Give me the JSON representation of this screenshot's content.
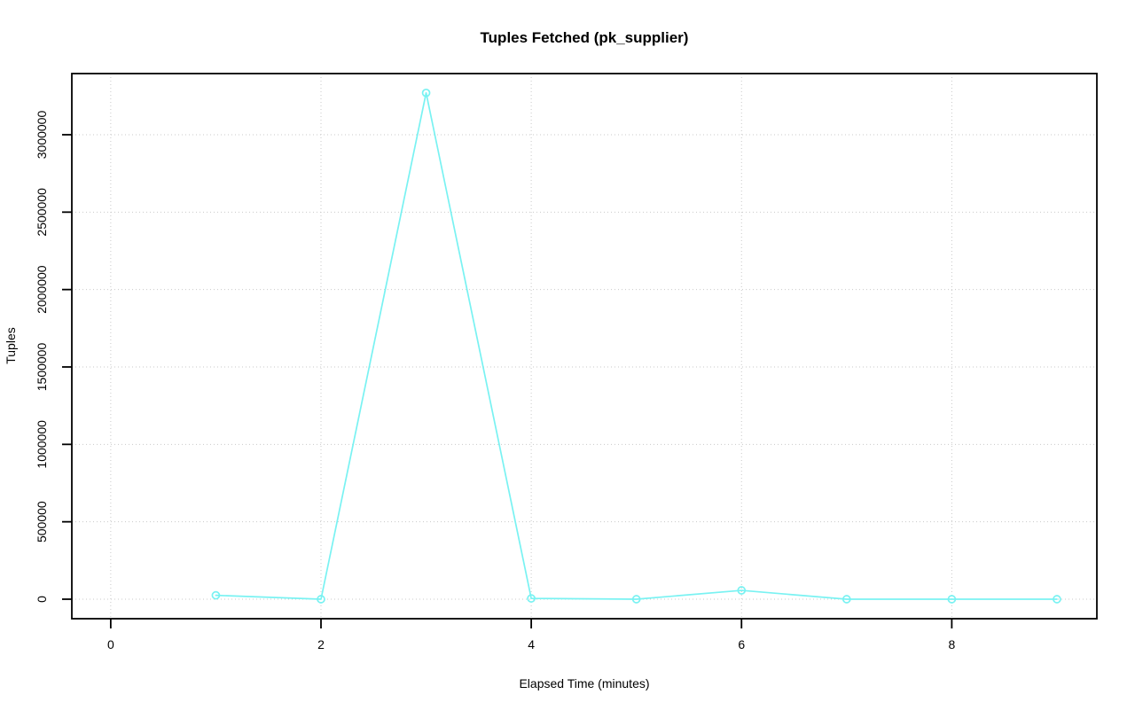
{
  "chart_data": {
    "type": "line",
    "title": "Tuples Fetched (pk_supplier)",
    "xlabel": "Elapsed Time (minutes)",
    "ylabel": "Tuples",
    "x": [
      1,
      2,
      3,
      4,
      5,
      6,
      7,
      8,
      9
    ],
    "values": [
      25000,
      0,
      3270000,
      5000,
      0,
      57000,
      0,
      0,
      0
    ],
    "x_ticks": [
      0,
      2,
      4,
      6,
      8
    ],
    "x_tick_labels": [
      "0",
      "2",
      "4",
      "6",
      "8"
    ],
    "y_ticks": [
      0,
      500000,
      1000000,
      1500000,
      2000000,
      2500000,
      3000000
    ],
    "y_tick_labels": [
      "0",
      "500000",
      "1000000",
      "1500000",
      "2000000",
      "2500000",
      "3000000"
    ],
    "xlim": [
      -0.37,
      9.38
    ],
    "ylim": [
      -126000,
      3395000
    ],
    "grid": "dotted",
    "grid_color": "#c9c9c9",
    "series_color": "#79f2f2",
    "marker": "open-circle",
    "legend": "none",
    "box_color": "#000000"
  }
}
